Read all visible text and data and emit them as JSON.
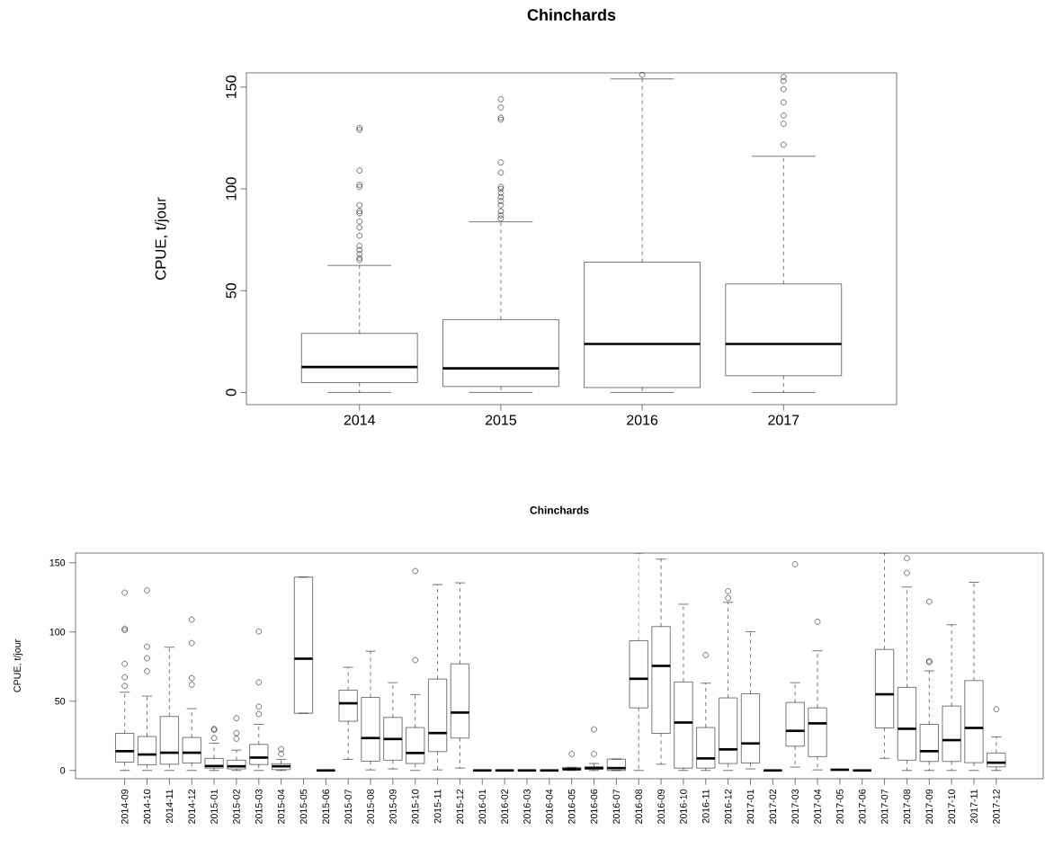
{
  "chart_data": [
    {
      "type": "box",
      "title": "Chinchards",
      "ylabel": "CPUE, t/jour",
      "categories": [
        "2014",
        "2015",
        "2016",
        "2017"
      ],
      "ylim": [
        -6,
        157
      ],
      "yticks": [
        0,
        50,
        100,
        150
      ],
      "boxes": [
        {
          "low": 0,
          "q1": 4.8,
          "median": 12.5,
          "q3": 29,
          "high": 62.4,
          "outliers": [
            65,
            66,
            68,
            70,
            72,
            77,
            81,
            84,
            88,
            89,
            92,
            101,
            102,
            109,
            129,
            130
          ]
        },
        {
          "low": 0,
          "q1": 2.9,
          "median": 11.8,
          "q3": 35.8,
          "high": 83.8,
          "outliers": [
            85.4,
            87,
            89,
            92,
            94,
            96,
            98,
            100,
            101,
            108,
            113,
            134,
            135,
            140,
            144
          ]
        },
        {
          "low": 0,
          "q1": 2.4,
          "median": 23.8,
          "q3": 64,
          "high": 154,
          "outliers": [
            156
          ]
        },
        {
          "low": 0,
          "q1": 8.2,
          "median": 23.8,
          "q3": 53.3,
          "high": 116,
          "outliers": [
            121.7,
            132,
            136,
            142.5,
            149,
            153,
            155
          ]
        }
      ]
    },
    {
      "type": "box",
      "title": "Chinchards",
      "ylabel": "CPUE, t/jour",
      "categories": [
        "2014-09",
        "2014-10",
        "2014-11",
        "2014-12",
        "2015-01",
        "2015-02",
        "2015-03",
        "2015-04",
        "2015-05",
        "2015-06",
        "2015-07",
        "2015-08",
        "2015-09",
        "2015-10",
        "2015-11",
        "2015-12",
        "2016-01",
        "2016-02",
        "2016-03",
        "2016-04",
        "2016-05",
        "2016-06",
        "2016-07",
        "2016-08",
        "2016-09",
        "2016-10",
        "2016-11",
        "2016-12",
        "2017-01",
        "2017-02",
        "2017-03",
        "2017-04",
        "2017-05",
        "2017-06",
        "2017-07",
        "2017-08",
        "2017-09",
        "2017-10",
        "2017-11",
        "2017-12"
      ],
      "ylim": [
        -6,
        157
      ],
      "yticks": [
        0,
        50,
        100,
        150
      ],
      "boxes": [
        {
          "low": 0,
          "q1": 6,
          "median": 13.9,
          "q3": 26.8,
          "high": 56.5,
          "outliers": [
            61,
            67.3,
            77,
            101.3,
            102.4,
            128.4
          ]
        },
        {
          "low": 0,
          "q1": 4.1,
          "median": 11.5,
          "q3": 24.5,
          "high": 53.7,
          "outliers": [
            71.6,
            81,
            89.4,
            130
          ]
        },
        {
          "low": 0,
          "q1": 4.5,
          "median": 12.8,
          "q3": 39,
          "high": 89
        },
        {
          "low": 0,
          "q1": 5.4,
          "median": 12.8,
          "q3": 23.8,
          "high": 44.6,
          "outliers": [
            61.9,
            66.7,
            92,
            108.9
          ]
        },
        {
          "low": 0,
          "q1": 1.7,
          "median": 3.2,
          "q3": 8.7,
          "high": 19.7,
          "outliers": [
            23.4,
            29.2,
            30
          ]
        },
        {
          "low": 0,
          "q1": 1.1,
          "median": 3,
          "q3": 7.4,
          "high": 14.7,
          "outliers": [
            22.9,
            27,
            37.7
          ]
        },
        {
          "low": 0,
          "q1": 4.3,
          "median": 9.3,
          "q3": 18.8,
          "high": 33.3,
          "outliers": [
            40.7,
            46.1,
            63.6,
            100.4
          ]
        },
        {
          "low": 0,
          "q1": 0.6,
          "median": 3,
          "q3": 4.8,
          "high": 8,
          "outliers": [
            11.9,
            15.4
          ]
        },
        {
          "low": 41.3,
          "q1": 41.3,
          "median": 80.7,
          "q3": 139.6,
          "high": 139.6
        },
        {
          "low": 0,
          "q1": 0,
          "median": 0,
          "q3": 0,
          "high": 0
        },
        {
          "low": 8,
          "q1": 35.5,
          "median": 48.5,
          "q3": 58,
          "high": 74.5
        },
        {
          "low": 0.4,
          "q1": 6.7,
          "median": 23.4,
          "q3": 52.8,
          "high": 86.1
        },
        {
          "low": 1.1,
          "q1": 7.4,
          "median": 22.7,
          "q3": 38.3,
          "high": 63.4
        },
        {
          "low": 0,
          "q1": 5,
          "median": 12.6,
          "q3": 31,
          "high": 54.8,
          "outliers": [
            79.7,
            144
          ]
        },
        {
          "low": 0.4,
          "q1": 13.6,
          "median": 27,
          "q3": 66,
          "high": 134.2
        },
        {
          "low": 1.7,
          "q1": 23.4,
          "median": 41.8,
          "q3": 77,
          "high": 135.5
        },
        {
          "low": 0,
          "q1": 0,
          "median": 0,
          "q3": 0,
          "high": 0
        },
        {
          "low": 0,
          "q1": 0,
          "median": 0,
          "q3": 0,
          "high": 0
        },
        {
          "low": 0,
          "q1": 0,
          "median": 0,
          "q3": 0,
          "high": 0
        },
        {
          "low": 0,
          "q1": 0,
          "median": 0,
          "q3": 0,
          "high": 0
        },
        {
          "low": 0,
          "q1": 0.4,
          "median": 0.9,
          "q3": 2.2,
          "high": 2.2,
          "outliers": [
            11.9
          ]
        },
        {
          "low": 0,
          "q1": 0.9,
          "median": 1.7,
          "q3": 2.6,
          "high": 5,
          "outliers": [
            11.9,
            29.7
          ]
        },
        {
          "low": 0,
          "q1": 0,
          "median": 1.7,
          "q3": 8.2,
          "high": 8.2
        },
        {
          "low": 0,
          "q1": 45.2,
          "median": 66.2,
          "q3": 93.7,
          "high": 157
        },
        {
          "low": 4.5,
          "q1": 26.8,
          "median": 75.5,
          "q3": 103.9,
          "high": 152.6
        },
        {
          "low": 0,
          "q1": 1.7,
          "median": 34.6,
          "q3": 63.9,
          "high": 120
        },
        {
          "low": 0,
          "q1": 1.7,
          "median": 8.7,
          "q3": 31,
          "high": 63,
          "outliers": [
            83.3
          ]
        },
        {
          "low": 0,
          "q1": 5,
          "median": 15.2,
          "q3": 52.4,
          "high": 121.4,
          "outliers": [
            124.5,
            129.4
          ]
        },
        {
          "low": 1.1,
          "q1": 5.4,
          "median": 19.5,
          "q3": 55.4,
          "high": 100.2
        },
        {
          "low": 0,
          "q1": 0,
          "median": 0,
          "q3": 0,
          "high": 0
        },
        {
          "low": 2.4,
          "q1": 17.5,
          "median": 28.6,
          "q3": 49.1,
          "high": 63.4,
          "outliers": [
            148.9
          ]
        },
        {
          "low": 0.4,
          "q1": 10,
          "median": 34,
          "q3": 45.2,
          "high": 86.4,
          "outliers": [
            107.4
          ]
        },
        {
          "low": 0.5,
          "q1": 0.5,
          "median": 0.5,
          "q3": 0.5,
          "high": 0.5
        },
        {
          "low": 0,
          "q1": 0,
          "median": 0,
          "q3": 0,
          "high": 0
        },
        {
          "low": 8.7,
          "q1": 30.7,
          "median": 55,
          "q3": 87.4,
          "high": 157
        },
        {
          "low": 0,
          "q1": 7.4,
          "median": 30.1,
          "q3": 60,
          "high": 132.5,
          "outliers": [
            142.6,
            153.2
          ]
        },
        {
          "low": 0,
          "q1": 6.5,
          "median": 13.9,
          "q3": 33.3,
          "high": 71.9,
          "outliers": [
            78.1,
            79,
            121.9
          ]
        },
        {
          "low": 0,
          "q1": 6.5,
          "median": 21.9,
          "q3": 46.5,
          "high": 105.2
        },
        {
          "low": 0,
          "q1": 5.6,
          "median": 30.7,
          "q3": 64.9,
          "high": 135.9
        },
        {
          "low": 0,
          "q1": 2.6,
          "median": 5.6,
          "q3": 12.6,
          "high": 24.2,
          "outliers": [
            44.2
          ]
        }
      ]
    }
  ]
}
